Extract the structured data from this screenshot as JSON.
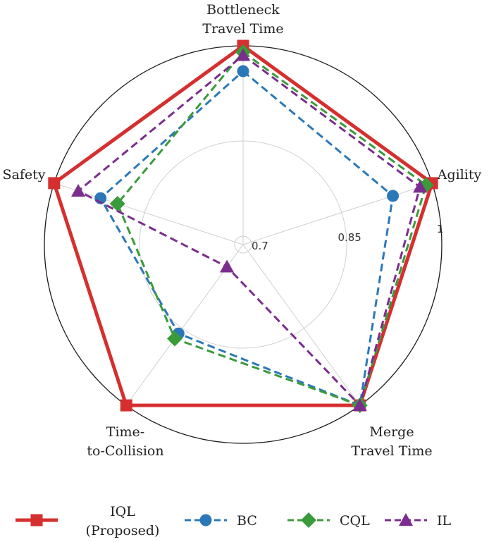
{
  "chart_data": {
    "type": "radar",
    "title": "",
    "axes": [
      {
        "label_lines": [
          "Bottleneck",
          "Travel Time"
        ]
      },
      {
        "label_lines": [
          "Agility"
        ]
      },
      {
        "label_lines": [
          "Merge",
          "Travel Time"
        ]
      },
      {
        "label_lines": [
          "Time-",
          "to-Collision"
        ]
      },
      {
        "label_lines": [
          "Safety"
        ]
      }
    ],
    "r_range": [
      0.7,
      1.0
    ],
    "r_ticks": [
      {
        "value": 0.7,
        "label": "0.7"
      },
      {
        "value": 0.85,
        "label": "0.85"
      },
      {
        "value": 1.0,
        "label": "1"
      }
    ],
    "grid": true,
    "legend": {
      "position": "bottom",
      "entries": [
        {
          "series_index": 0,
          "lines": [
            "IQL",
            "(Proposed)"
          ]
        },
        {
          "series_index": 1,
          "lines": [
            "BC"
          ]
        },
        {
          "series_index": 2,
          "lines": [
            "CQL"
          ]
        },
        {
          "series_index": 3,
          "lines": [
            "IL"
          ]
        }
      ]
    },
    "series": [
      {
        "name": "IQL (Proposed)",
        "values": [
          1.0,
          1.0,
          1.0,
          1.0,
          1.0
        ],
        "color": "#d62f2f",
        "marker": "square",
        "dashed": false
      },
      {
        "name": "BC",
        "values": [
          0.96,
          0.935,
          1.0,
          0.86,
          0.923
        ],
        "color": "#2b78b8",
        "marker": "circle",
        "dashed": true
      },
      {
        "name": "CQL",
        "values": [
          0.99,
          0.99,
          1.0,
          0.87,
          0.895
        ],
        "color": "#3a9b3a",
        "marker": "diamond",
        "dashed": true
      },
      {
        "name": "IL",
        "values": [
          0.985,
          0.98,
          1.0,
          0.73,
          0.96
        ],
        "color": "#7b2d8e",
        "marker": "triangle",
        "dashed": true
      }
    ]
  }
}
